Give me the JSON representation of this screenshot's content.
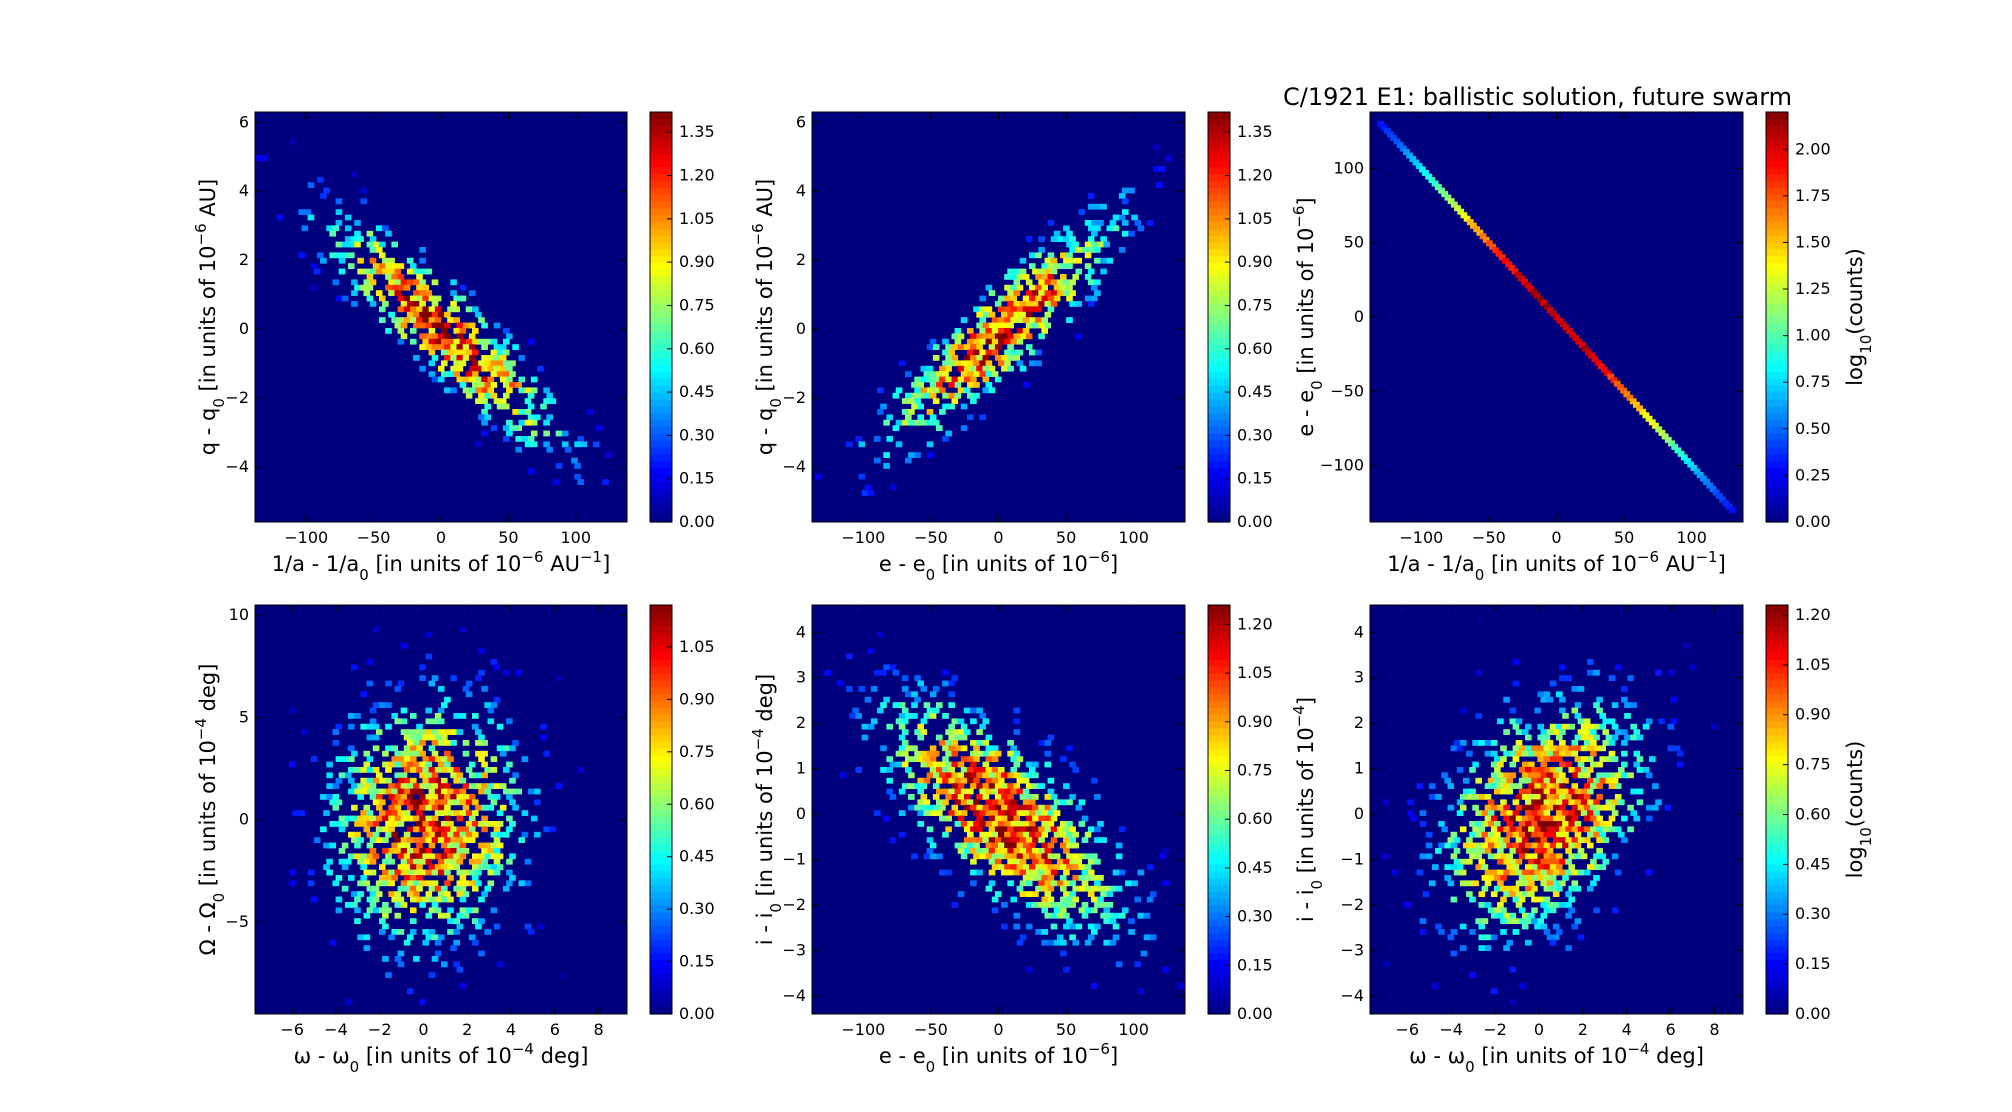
{
  "figure": {
    "title": "C/1921 E1:  ballistic solution, future swarm"
  },
  "chart_data": [
    {
      "type": "heatmap",
      "panel": "top-left",
      "xlabel": "1/a - 1/a",
      "xlabel_sub": "0",
      "xlabel_rest": " [in units of 10",
      "xlabel_sup": "−6",
      "xlabel_tail": " AU",
      "xlabel_tail_sup": "−1",
      "xlabel_end": "]",
      "ylabel": "q - q",
      "ylabel_sub": "0",
      "ylabel_rest": " [in units of 10",
      "ylabel_sup": "−6",
      "ylabel_end": " AU]",
      "xlim": [
        -138,
        138
      ],
      "ylim": [
        -5.6,
        6.3
      ],
      "xticks": [
        "−100",
        "−50",
        "0",
        "50",
        "100"
      ],
      "xtick_values": [
        -100,
        -50,
        0,
        50,
        100
      ],
      "yticks": [
        "−4",
        "−2",
        "0",
        "2",
        "4",
        "6"
      ],
      "ytick_values": [
        -4,
        -2,
        0,
        2,
        4,
        6
      ],
      "colorbar": {
        "min": 0,
        "max": 1.42,
        "ticks": [
          "0.00",
          "0.15",
          "0.30",
          "0.45",
          "0.60",
          "0.75",
          "0.90",
          "1.05",
          "1.20",
          "1.35"
        ],
        "tick_values": [
          0,
          0.15,
          0.3,
          0.45,
          0.6,
          0.75,
          0.9,
          1.05,
          1.2,
          1.35
        ],
        "label": ""
      },
      "distribution": {
        "kind": "gaussian",
        "sx": 45,
        "sy": 1.7,
        "rho": -0.9,
        "peak": 1.35
      },
      "background": "#00007f"
    },
    {
      "type": "heatmap",
      "panel": "top-middle",
      "xlabel": "e - e",
      "xlabel_sub": "0",
      "xlabel_rest": " [in units of 10",
      "xlabel_sup": "−6",
      "xlabel_tail": "",
      "xlabel_tail_sup": "",
      "xlabel_end": "]",
      "ylabel": "q - q",
      "ylabel_sub": "0",
      "ylabel_rest": " [in units of 10",
      "ylabel_sup": "−6",
      "ylabel_end": " AU]",
      "xlim": [
        -138,
        138
      ],
      "ylim": [
        -5.6,
        6.3
      ],
      "xticks": [
        "−100",
        "−50",
        "0",
        "50",
        "100"
      ],
      "xtick_values": [
        -100,
        -50,
        0,
        50,
        100
      ],
      "yticks": [
        "−4",
        "−2",
        "0",
        "2",
        "4",
        "6"
      ],
      "ytick_values": [
        -4,
        -2,
        0,
        2,
        4,
        6
      ],
      "colorbar": {
        "min": 0,
        "max": 1.42,
        "ticks": [
          "0.00",
          "0.15",
          "0.30",
          "0.45",
          "0.60",
          "0.75",
          "0.90",
          "1.05",
          "1.20",
          "1.35"
        ],
        "tick_values": [
          0,
          0.15,
          0.3,
          0.45,
          0.6,
          0.75,
          0.9,
          1.05,
          1.2,
          1.35
        ],
        "label": ""
      },
      "distribution": {
        "kind": "gaussian",
        "sx": 45,
        "sy": 1.7,
        "rho": 0.9,
        "peak": 1.35
      },
      "background": "#00007f"
    },
    {
      "type": "heatmap",
      "panel": "top-right",
      "xlabel": "1/a - 1/a",
      "xlabel_sub": "0",
      "xlabel_rest": " [in units of 10",
      "xlabel_sup": "−6",
      "xlabel_tail": " AU",
      "xlabel_tail_sup": "−1",
      "xlabel_end": "]",
      "ylabel": "e - e",
      "ylabel_sub": "0",
      "ylabel_rest": " [in units of 10",
      "ylabel_sup": "−6",
      "ylabel_end": "]",
      "xlim": [
        -138,
        138
      ],
      "ylim": [
        -138,
        138
      ],
      "xticks": [
        "−100",
        "−50",
        "0",
        "50",
        "100"
      ],
      "xtick_values": [
        -100,
        -50,
        0,
        50,
        100
      ],
      "yticks": [
        "−100",
        "−50",
        "0",
        "50",
        "100"
      ],
      "ytick_values": [
        -100,
        -50,
        0,
        50,
        100
      ],
      "colorbar": {
        "min": 0,
        "max": 2.2,
        "ticks": [
          "0.00",
          "0.25",
          "0.50",
          "0.75",
          "1.00",
          "1.25",
          "1.50",
          "1.75",
          "2.00"
        ],
        "tick_values": [
          0,
          0.25,
          0.5,
          0.75,
          1.0,
          1.25,
          1.5,
          1.75,
          2.0
        ],
        "label": "log",
        "label_sub": "10",
        "label_rest": "(counts)"
      },
      "distribution": {
        "kind": "line",
        "slope": -1,
        "from": -130,
        "to": 130,
        "peak": 2.15
      },
      "background": "#00007f"
    },
    {
      "type": "heatmap",
      "panel": "bottom-left",
      "xlabel": "ω - ω",
      "xlabel_sub": "0",
      "xlabel_rest": " [in units of 10",
      "xlabel_sup": "−4",
      "xlabel_tail": " deg]",
      "xlabel_tail_sup": "",
      "xlabel_end": "",
      "ylabel": "Ω - Ω",
      "ylabel_sub": "0",
      "ylabel_rest": " [in units of 10",
      "ylabel_sup": "−4",
      "ylabel_end": " deg]",
      "xlim": [
        -7.7,
        9.3
      ],
      "ylim": [
        -9.5,
        10.5
      ],
      "xticks": [
        "−6",
        "−4",
        "−2",
        "0",
        "2",
        "4",
        "6",
        "8"
      ],
      "xtick_values": [
        -6,
        -4,
        -2,
        0,
        2,
        4,
        6,
        8
      ],
      "yticks": [
        "−5",
        "0",
        "5",
        "10"
      ],
      "ytick_values": [
        -5,
        0,
        5,
        10
      ],
      "colorbar": {
        "min": 0,
        "max": 1.17,
        "ticks": [
          "0.00",
          "0.15",
          "0.30",
          "0.45",
          "0.60",
          "0.75",
          "0.90",
          "1.05"
        ],
        "tick_values": [
          0,
          0.15,
          0.3,
          0.45,
          0.6,
          0.75,
          0.9,
          1.05
        ],
        "label": ""
      },
      "distribution": {
        "kind": "gaussian",
        "sx": 2.2,
        "sy": 3.0,
        "rho": 0.05,
        "peak": 1.12
      },
      "background": "#00007f"
    },
    {
      "type": "heatmap",
      "panel": "bottom-middle",
      "xlabel": "e - e",
      "xlabel_sub": "0",
      "xlabel_rest": " [in units of 10",
      "xlabel_sup": "−6",
      "xlabel_tail": "",
      "xlabel_tail_sup": "",
      "xlabel_end": "]",
      "ylabel": "i - i",
      "ylabel_sub": "0",
      "ylabel_rest": " [in units of 10",
      "ylabel_sup": "−4",
      "ylabel_end": " deg]",
      "xlim": [
        -138,
        138
      ],
      "ylim": [
        -4.4,
        4.6
      ],
      "xticks": [
        "−100",
        "−50",
        "0",
        "50",
        "100"
      ],
      "xtick_values": [
        -100,
        -50,
        0,
        50,
        100
      ],
      "yticks": [
        "−4",
        "−3",
        "−2",
        "−1",
        "0",
        "1",
        "2",
        "3",
        "4"
      ],
      "ytick_values": [
        -4,
        -3,
        -2,
        -1,
        0,
        1,
        2,
        3,
        4
      ],
      "colorbar": {
        "min": 0,
        "max": 1.26,
        "ticks": [
          "0.00",
          "0.15",
          "0.30",
          "0.45",
          "0.60",
          "0.75",
          "0.90",
          "1.05",
          "1.20"
        ],
        "tick_values": [
          0,
          0.15,
          0.3,
          0.45,
          0.6,
          0.75,
          0.9,
          1.05,
          1.2
        ],
        "label": ""
      },
      "distribution": {
        "kind": "gaussian",
        "sx": 45,
        "sy": 1.3,
        "rho": -0.7,
        "peak": 1.22
      },
      "background": "#00007f"
    },
    {
      "type": "heatmap",
      "panel": "bottom-right",
      "xlabel": "ω - ω",
      "xlabel_sub": "0",
      "xlabel_rest": " [in units of 10",
      "xlabel_sup": "−4",
      "xlabel_tail": " deg]",
      "xlabel_tail_sup": "",
      "xlabel_end": "",
      "ylabel": "i - i",
      "ylabel_sub": "0",
      "ylabel_rest": " [in units of 10",
      "ylabel_sup": "−4",
      "ylabel_end": "]",
      "xlim": [
        -7.7,
        9.3
      ],
      "ylim": [
        -4.4,
        4.6
      ],
      "xticks": [
        "−6",
        "−4",
        "−2",
        "0",
        "2",
        "4",
        "6",
        "8"
      ],
      "xtick_values": [
        -6,
        -4,
        -2,
        0,
        2,
        4,
        6,
        8
      ],
      "yticks": [
        "−4",
        "−3",
        "−2",
        "−1",
        "0",
        "1",
        "2",
        "3",
        "4"
      ],
      "ytick_values": [
        -4,
        -3,
        -2,
        -1,
        0,
        1,
        2,
        3,
        4
      ],
      "colorbar": {
        "min": 0,
        "max": 1.23,
        "ticks": [
          "0.00",
          "0.15",
          "0.30",
          "0.45",
          "0.60",
          "0.75",
          "0.90",
          "1.05",
          "1.20"
        ],
        "tick_values": [
          0,
          0.15,
          0.3,
          0.45,
          0.6,
          0.75,
          0.9,
          1.05,
          1.2
        ],
        "label": "log",
        "label_sub": "10",
        "label_rest": "(counts)"
      },
      "distribution": {
        "kind": "gaussian",
        "sx": 2.3,
        "sy": 1.3,
        "rho": 0.35,
        "peak": 1.2
      },
      "background": "#00007f"
    }
  ]
}
